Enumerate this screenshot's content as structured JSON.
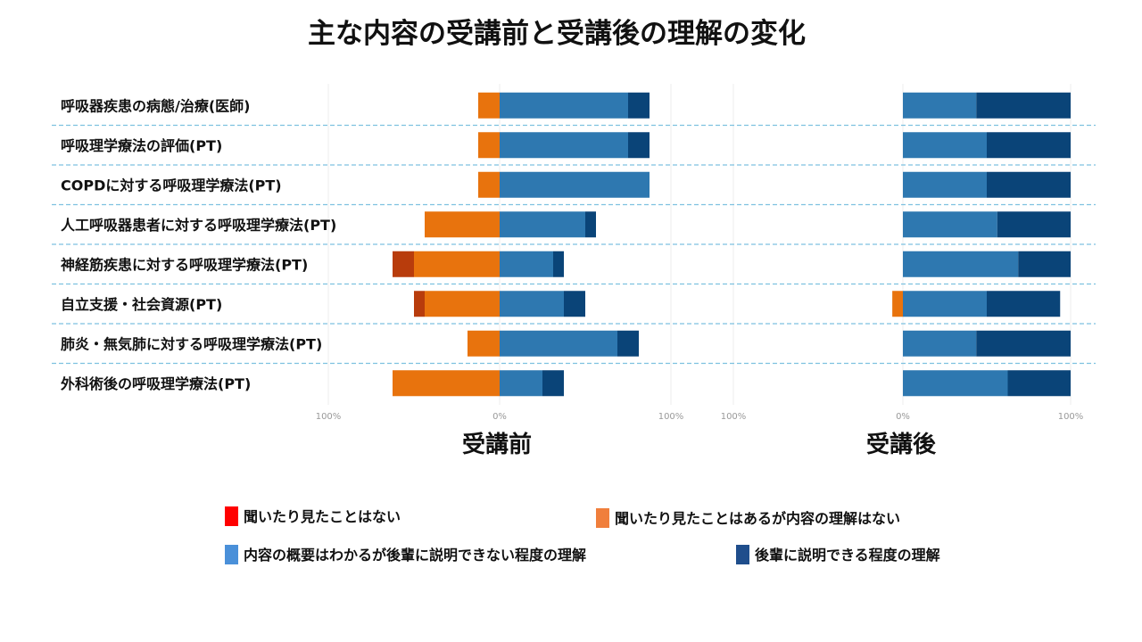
{
  "title": "主な内容の受講前と受講後の理解の変化",
  "chart_data": {
    "type": "bar",
    "orientation": "horizontal",
    "stacked": "diverging",
    "categories": [
      "呼吸器疾患の病態/治療(医師)",
      "呼吸理学療法の評価(PT)",
      "COPDに対する呼吸理学療法(PT)",
      "人工呼吸器患者に対する呼吸理学療法(PT)",
      "神経筋疾患に対する呼吸理学療法(PT)",
      "自立支援・社会資源(PT)",
      "肺炎・無気肺に対する呼吸理学療法(PT)",
      "外科術後の呼吸理学療法(PT)"
    ],
    "legend": [
      {
        "name": "聞いたり見たことはない",
        "color": "#ff0000"
      },
      {
        "name": "聞いたり見たことはあるが内容の理解はない",
        "color": "#f07f3c"
      },
      {
        "name": "内容の概要はわかるが後輩に説明できない程度の理解",
        "color": "#4a90d9"
      },
      {
        "name": "後輩に説明できる程度の理解",
        "color": "#1f4e8c"
      }
    ],
    "bar_colors": [
      "#b83c0c",
      "#e8730d",
      "#2e78b0",
      "#0a4478"
    ],
    "panels": [
      {
        "label": "受講前",
        "ticks": [
          "100%",
          "0%",
          "100%"
        ],
        "xlim": [
          -100,
          100
        ],
        "series": [
          {
            "name": "聞いたり見たことはない",
            "values": [
              0,
              0,
              0,
              0,
              12.5,
              6.25,
              0,
              0
            ]
          },
          {
            "name": "聞いたり見たことはあるが内容の理解はない",
            "values": [
              12.5,
              12.5,
              12.5,
              43.75,
              50,
              43.75,
              18.75,
              62.5
            ]
          },
          {
            "name": "内容の概要はわかるが後輩に説明できない程度の理解",
            "values": [
              75,
              75,
              87.5,
              50,
              31.25,
              37.5,
              68.75,
              25
            ]
          },
          {
            "name": "後輩に説明できる程度の理解",
            "values": [
              12.5,
              12.5,
              0,
              6.25,
              6.25,
              12.5,
              12.5,
              12.5
            ]
          }
        ]
      },
      {
        "label": "受講後",
        "ticks": [
          "100%",
          "0%",
          "100%"
        ],
        "xlim": [
          -100,
          100
        ],
        "series": [
          {
            "name": "聞いたり見たことはない",
            "values": [
              0,
              0,
              0,
              0,
              0,
              0,
              0,
              0
            ]
          },
          {
            "name": "聞いたり見たことはあるが内容の理解はない",
            "values": [
              0,
              0,
              0,
              0,
              0,
              6.25,
              0,
              0
            ]
          },
          {
            "name": "内容の概要はわかるが後輩に説明できない程度の理解",
            "values": [
              43.75,
              50,
              50,
              56.25,
              68.75,
              50,
              43.75,
              62.5
            ]
          },
          {
            "name": "後輩に説明できる程度の理解",
            "values": [
              56.25,
              50,
              50,
              43.75,
              31.25,
              43.75,
              56.25,
              37.5
            ]
          }
        ]
      }
    ]
  }
}
